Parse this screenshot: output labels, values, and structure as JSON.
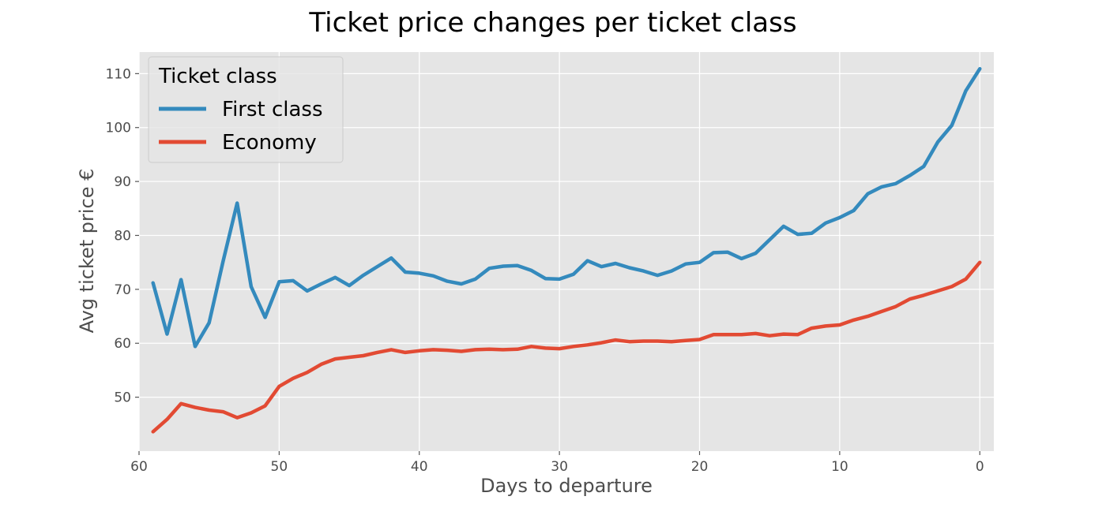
{
  "chart_data": {
    "type": "line",
    "title": "Ticket price changes per ticket class",
    "xlabel": "Days to departure",
    "ylabel": "Avg ticket price €",
    "xlim": [
      60,
      -1
    ],
    "ylim": [
      40,
      114
    ],
    "x_inverted": true,
    "xticks": [
      60,
      50,
      40,
      30,
      20,
      10,
      0
    ],
    "yticks": [
      50,
      60,
      70,
      80,
      90,
      100,
      110
    ],
    "grid": true,
    "legend": {
      "title": "Ticket class",
      "placement": "top-left"
    },
    "x": [
      59,
      58,
      57,
      56,
      55,
      54,
      53,
      52,
      51,
      50,
      49,
      48,
      47,
      46,
      45,
      44,
      43,
      42,
      41,
      40,
      39,
      38,
      37,
      36,
      35,
      34,
      33,
      32,
      31,
      30,
      29,
      28,
      27,
      26,
      25,
      24,
      23,
      22,
      21,
      20,
      19,
      18,
      17,
      16,
      15,
      14,
      13,
      12,
      11,
      10,
      9,
      8,
      7,
      6,
      5,
      4,
      3,
      2,
      1,
      0
    ],
    "series": [
      {
        "name": "First class",
        "color": "#348abd",
        "values": [
          71.2,
          61.7,
          71.8,
          59.4,
          63.8,
          75.2,
          86.0,
          70.5,
          64.8,
          71.4,
          71.6,
          69.7,
          71.0,
          72.2,
          70.7,
          72.6,
          74.2,
          75.8,
          73.2,
          73.0,
          72.5,
          71.5,
          71.0,
          71.9,
          73.9,
          74.3,
          74.4,
          73.5,
          72.0,
          71.9,
          72.8,
          75.3,
          74.2,
          74.8,
          74.0,
          73.4,
          72.6,
          73.4,
          74.7,
          75.0,
          76.8,
          76.9,
          75.7,
          76.7,
          79.2,
          81.7,
          80.2,
          80.4,
          82.3,
          83.3,
          84.6,
          87.7,
          89.0,
          89.6,
          91.1,
          92.8,
          97.3,
          100.4,
          106.8,
          110.9
        ]
      },
      {
        "name": "Economy",
        "color": "#e24a33",
        "values": [
          43.6,
          45.9,
          48.8,
          48.1,
          47.6,
          47.3,
          46.2,
          47.1,
          48.4,
          52.0,
          53.5,
          54.6,
          56.1,
          57.1,
          57.4,
          57.7,
          58.3,
          58.8,
          58.3,
          58.6,
          58.8,
          58.7,
          58.5,
          58.8,
          58.9,
          58.8,
          58.9,
          59.4,
          59.1,
          59.0,
          59.4,
          59.7,
          60.1,
          60.6,
          60.3,
          60.4,
          60.4,
          60.3,
          60.5,
          60.7,
          61.6,
          61.6,
          61.6,
          61.8,
          61.4,
          61.7,
          61.6,
          62.8,
          63.2,
          63.4,
          64.3,
          65.0,
          65.9,
          66.8,
          68.2,
          68.9,
          69.7,
          70.5,
          71.9,
          75.0
        ]
      }
    ]
  }
}
